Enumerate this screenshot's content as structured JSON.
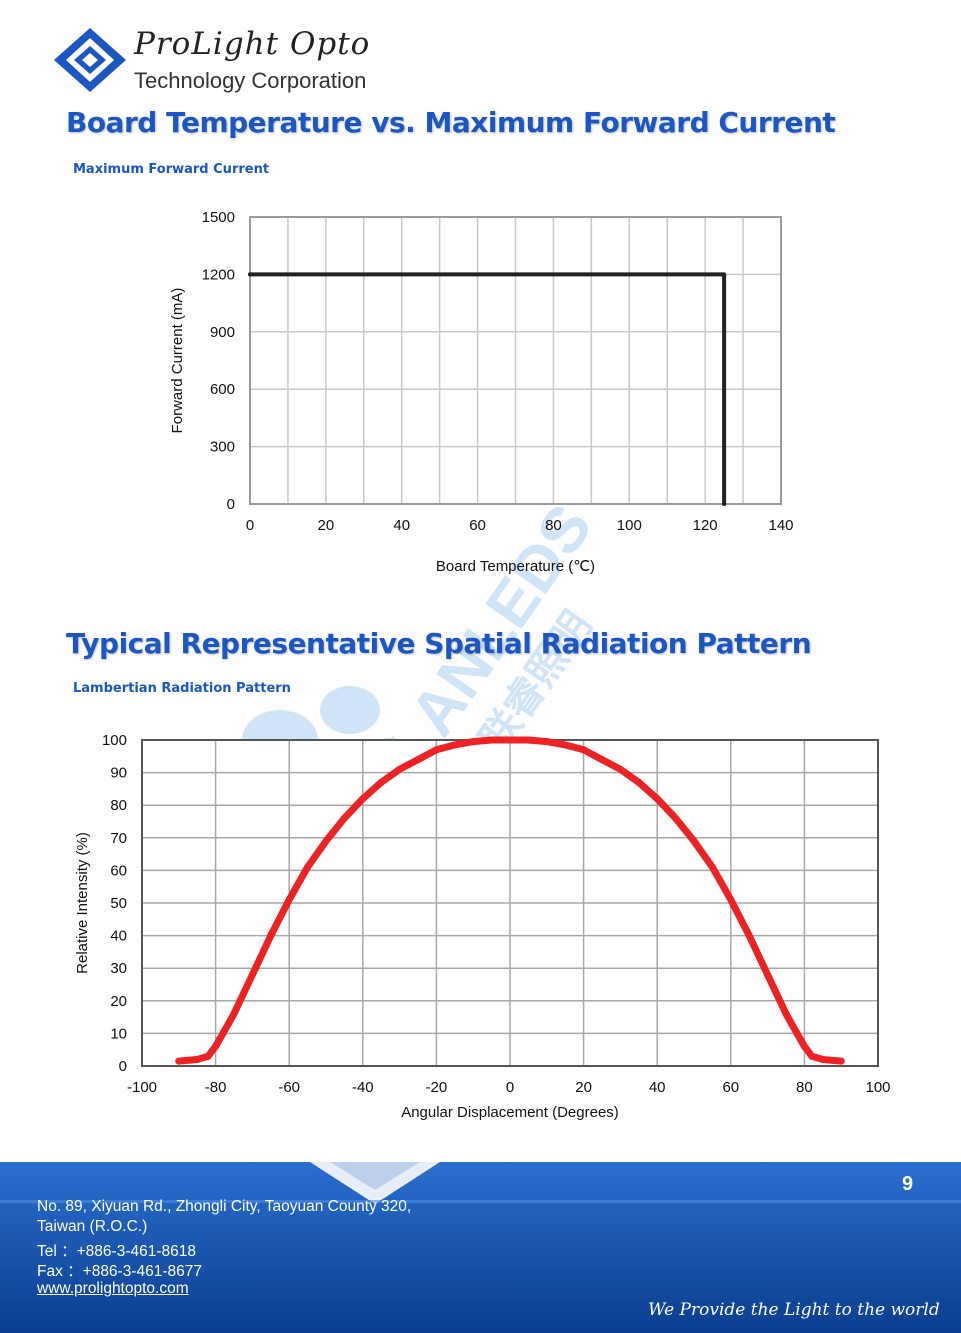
{
  "header": {
    "company_script": "ProLight Opto",
    "company_sub": "Technology Corporation"
  },
  "watermark": {
    "text": "LANLEDS",
    "cn_text": "联睿照明"
  },
  "section1": {
    "title": "Board Temperature vs. Maximum Forward Current",
    "subtitle": "Maximum Forward Current"
  },
  "section2": {
    "title": "Typical Representative Spatial Radiation Pattern",
    "subtitle": "Lambertian Radiation Pattern"
  },
  "chart_data": [
    {
      "type": "line",
      "title": "Maximum Forward Current",
      "xlabel": "Board Temperature (℃)",
      "ylabel": "Forward Current (mA)",
      "xlim": [
        0,
        140
      ],
      "ylim": [
        0,
        1500
      ],
      "xticks": [
        0,
        20,
        40,
        60,
        80,
        100,
        120,
        140
      ],
      "yticks": [
        0,
        300,
        600,
        900,
        1200,
        1500
      ],
      "grid": true,
      "series": [
        {
          "name": "Max Forward Current",
          "x": [
            0,
            125,
            125
          ],
          "y": [
            1200,
            1200,
            0
          ],
          "color": "#222222"
        }
      ]
    },
    {
      "type": "line",
      "title": "Lambertian Radiation Pattern",
      "xlabel": "Angular Displacement (Degrees)",
      "ylabel": "Relative Intensity (%)",
      "xlim": [
        -100,
        100
      ],
      "ylim": [
        0,
        100
      ],
      "xticks": [
        -100,
        -80,
        -60,
        -40,
        -20,
        0,
        20,
        40,
        60,
        80,
        100
      ],
      "yticks": [
        0,
        10,
        20,
        30,
        40,
        50,
        60,
        70,
        80,
        90,
        100
      ],
      "grid": true,
      "series": [
        {
          "name": "Relative Intensity",
          "color": "#ee2222",
          "x": [
            -90,
            -85,
            -82,
            -80,
            -78,
            -75,
            -70,
            -65,
            -60,
            -55,
            -50,
            -45,
            -40,
            -35,
            -30,
            -25,
            -20,
            -15,
            -10,
            -5,
            0,
            5,
            10,
            15,
            20,
            25,
            30,
            35,
            40,
            45,
            50,
            55,
            60,
            65,
            70,
            75,
            78,
            80,
            82,
            85,
            90
          ],
          "y": [
            1.5,
            2,
            3,
            6,
            10,
            16,
            28,
            40,
            51,
            61,
            69,
            76,
            82,
            87,
            91,
            94,
            97,
            98.5,
            99.5,
            100,
            100,
            100,
            99.5,
            98.5,
            97,
            94,
            91,
            87,
            82,
            76,
            69,
            61,
            51,
            40,
            28,
            16,
            10,
            6,
            3,
            2,
            1.5
          ]
        }
      ]
    }
  ],
  "footer": {
    "page_number": "9",
    "address_line1": "No. 89, Xiyuan Rd., Zhongli City, Taoyuan County 320,",
    "address_line2": "Taiwan (R.O.C.)",
    "tel": "Tel ：+886-3-461-8618",
    "fax": "Fax ：+886-3-461-8677",
    "website": "www.prolightopto.com",
    "tagline": "We Provide the Light to the world"
  },
  "colors": {
    "title_blue": "#1a56c4",
    "footer_blue": "#1552b0",
    "curve_red": "#ee2222"
  }
}
